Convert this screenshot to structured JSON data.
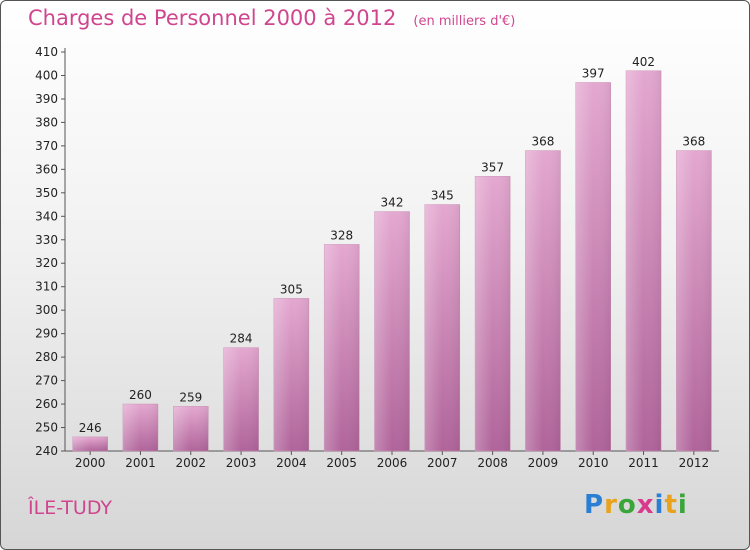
{
  "chart_data": {
    "type": "bar",
    "title": "Charges de Personnel 2000 à 2012",
    "subtitle": "(en milliers d'€)",
    "categories": [
      "2000",
      "2001",
      "2002",
      "2003",
      "2004",
      "2005",
      "2006",
      "2007",
      "2008",
      "2009",
      "2010",
      "2011",
      "2012"
    ],
    "values": [
      246,
      260,
      259,
      284,
      305,
      328,
      342,
      345,
      357,
      368,
      397,
      402,
      368
    ],
    "ylim": [
      240,
      410
    ],
    "yticks": [
      240,
      250,
      260,
      270,
      280,
      290,
      300,
      310,
      320,
      330,
      340,
      350,
      360,
      370,
      380,
      390,
      400,
      410
    ],
    "grid": false,
    "bar_color": "#d994bf"
  },
  "commune": "ÎLE-TUDY",
  "logo": {
    "letters": [
      "P",
      "r",
      "o",
      "x",
      "i",
      "t",
      "i"
    ],
    "colors": [
      "#2a7fd4",
      "#e8a21c",
      "#3aa53a",
      "#d83a8e",
      "#2a7fd4",
      "#e8a21c",
      "#3aa53a"
    ]
  }
}
